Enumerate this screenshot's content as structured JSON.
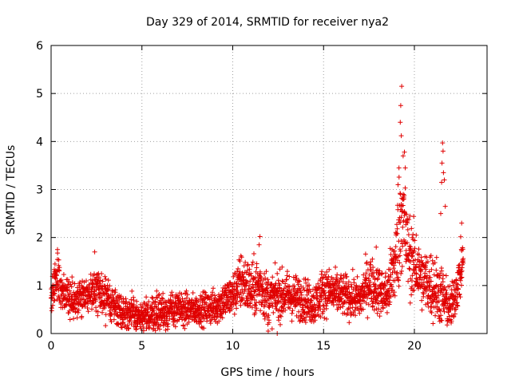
{
  "chart_data": {
    "type": "scatter",
    "title": "Day 329 of 2014, SRMTID for receiver nya2",
    "xlabel": "GPS time / hours",
    "ylabel": "SRMTID / TECUs",
    "xlim": [
      0,
      24
    ],
    "ylim": [
      0,
      6
    ],
    "x_ticks": [
      0,
      5,
      10,
      15,
      20
    ],
    "x_tick_labels": [
      "0",
      "5",
      "10",
      "15",
      "20"
    ],
    "y_ticks": [
      0,
      1,
      2,
      3,
      4,
      5,
      6
    ],
    "y_tick_labels": [
      "0",
      "1",
      "2",
      "3",
      "4",
      "5",
      "6"
    ],
    "grid": true,
    "marker": "+",
    "color": "#e00000",
    "envelope": {
      "description": "approximate typical SRMTID level (TECU) per GPS hour",
      "x": [
        0,
        0.3,
        0.5,
        1,
        2,
        2.5,
        3,
        3.5,
        4,
        4.5,
        5,
        5.5,
        6,
        7,
        8,
        9,
        10,
        10.5,
        11,
        11.5,
        12,
        12.5,
        13,
        14,
        14.5,
        15,
        16,
        17,
        17.5,
        18,
        18.5,
        19,
        19.3,
        19.6,
        20,
        20.5,
        21,
        21.5,
        22,
        22.5,
        22.7
      ],
      "center": [
        0.7,
        1.2,
        0.9,
        0.75,
        0.8,
        0.95,
        0.7,
        0.6,
        0.45,
        0.4,
        0.3,
        0.4,
        0.45,
        0.5,
        0.5,
        0.55,
        0.8,
        1.1,
        0.9,
        1.0,
        0.7,
        0.8,
        0.8,
        0.7,
        0.6,
        0.9,
        0.8,
        0.7,
        1.1,
        0.9,
        0.8,
        1.6,
        2.6,
        1.8,
        1.4,
        1.1,
        1.0,
        0.8,
        0.5,
        1.2,
        1.6
      ],
      "spread": [
        0.35,
        0.5,
        0.35,
        0.3,
        0.3,
        0.4,
        0.35,
        0.3,
        0.3,
        0.3,
        0.25,
        0.3,
        0.3,
        0.3,
        0.25,
        0.3,
        0.35,
        0.5,
        0.45,
        0.5,
        0.4,
        0.4,
        0.4,
        0.35,
        0.35,
        0.4,
        0.35,
        0.35,
        0.45,
        0.4,
        0.4,
        0.8,
        1.1,
        0.7,
        0.6,
        0.5,
        0.6,
        0.5,
        0.35,
        0.45,
        0.45
      ]
    },
    "sample_interval_hours": 0.0083,
    "data_end_hour": 22.7,
    "outliers": [
      {
        "x": 19.3,
        "y": 5.15
      },
      {
        "x": 19.25,
        "y": 4.75
      },
      {
        "x": 19.22,
        "y": 4.4
      },
      {
        "x": 19.28,
        "y": 4.12
      },
      {
        "x": 19.45,
        "y": 3.78
      },
      {
        "x": 19.38,
        "y": 3.7
      },
      {
        "x": 19.15,
        "y": 3.45
      },
      {
        "x": 19.5,
        "y": 3.45
      },
      {
        "x": 19.1,
        "y": 3.1
      },
      {
        "x": 21.55,
        "y": 3.97
      },
      {
        "x": 21.58,
        "y": 3.8
      },
      {
        "x": 21.52,
        "y": 3.55
      },
      {
        "x": 21.6,
        "y": 3.35
      },
      {
        "x": 21.65,
        "y": 3.2
      },
      {
        "x": 21.5,
        "y": 3.15
      },
      {
        "x": 21.7,
        "y": 2.65
      },
      {
        "x": 21.45,
        "y": 2.5
      },
      {
        "x": 11.5,
        "y": 2.02
      },
      {
        "x": 11.45,
        "y": 1.85
      },
      {
        "x": 0.35,
        "y": 1.75
      },
      {
        "x": 2.4,
        "y": 1.7
      },
      {
        "x": 17.9,
        "y": 1.8
      },
      {
        "x": 20.1,
        "y": 2.05
      },
      {
        "x": 22.6,
        "y": 2.3
      },
      {
        "x": 12.45,
        "y": 0.0
      },
      {
        "x": 11.95,
        "y": 0.05
      }
    ]
  }
}
